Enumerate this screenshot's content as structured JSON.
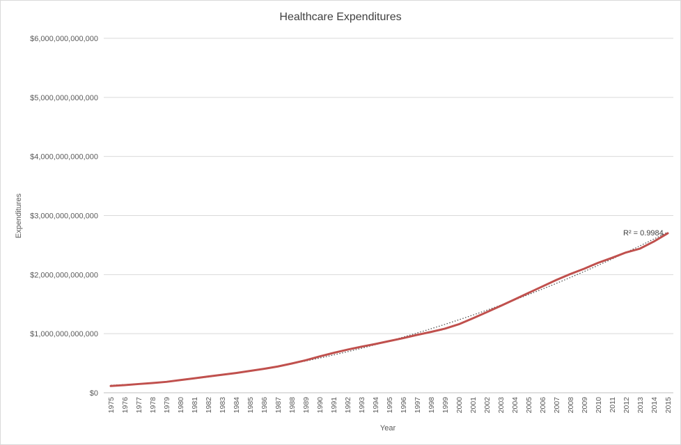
{
  "chart_data": {
    "type": "line",
    "title": "Healthcare Expenditures",
    "xlabel": "Year",
    "ylabel": "Expenditures",
    "ylim": [
      0,
      6000000000000
    ],
    "y_ticks": [
      {
        "value": 0,
        "label": "$0"
      },
      {
        "value": 1000000000000,
        "label": "$1,000,000,000,000"
      },
      {
        "value": 2000000000000,
        "label": "$2,000,000,000,000"
      },
      {
        "value": 3000000000000,
        "label": "$3,000,000,000,000"
      },
      {
        "value": 4000000000000,
        "label": "$4,000,000,000,000"
      },
      {
        "value": 5000000000000,
        "label": "$5,000,000,000,000"
      },
      {
        "value": 6000000000000,
        "label": "$6,000,000,000,000"
      }
    ],
    "grid": true,
    "legend": "none",
    "categories": [
      "1975",
      "1976",
      "1977",
      "1978",
      "1979",
      "1980",
      "1981",
      "1982",
      "1983",
      "1984",
      "1985",
      "1986",
      "1987",
      "1988",
      "1989",
      "1990",
      "1991",
      "1992",
      "1993",
      "1994",
      "1995",
      "1996",
      "1997",
      "1998",
      "1999",
      "2000",
      "2001",
      "2002",
      "2003",
      "2004",
      "2005",
      "2006",
      "2007",
      "2008",
      "2009",
      "2010",
      "2011",
      "2012",
      "2013",
      "2014",
      "2015"
    ],
    "series": [
      {
        "color": "#c0504d",
        "values": [
          115000000000,
          130000000000,
          148000000000,
          165000000000,
          185000000000,
          215000000000,
          245000000000,
          275000000000,
          305000000000,
          335000000000,
          370000000000,
          405000000000,
          445000000000,
          495000000000,
          550000000000,
          615000000000,
          675000000000,
          730000000000,
          780000000000,
          825000000000,
          875000000000,
          925000000000,
          980000000000,
          1030000000000,
          1085000000000,
          1160000000000,
          1260000000000,
          1365000000000,
          1470000000000,
          1580000000000,
          1690000000000,
          1800000000000,
          1910000000000,
          2010000000000,
          2100000000000,
          2200000000000,
          2285000000000,
          2375000000000,
          2440000000000,
          2560000000000,
          2700000000000
        ]
      }
    ],
    "trendline": {
      "style": "dotted",
      "color": "#404040",
      "annotation": "R² = 0.9984"
    }
  }
}
